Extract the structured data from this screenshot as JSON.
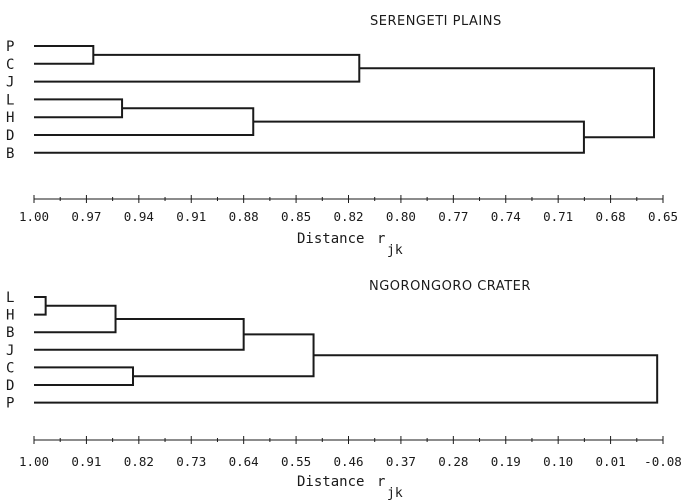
{
  "chart_data": [
    {
      "type": "dendrogram",
      "title": "SERENGETI  PLAINS",
      "leaves": [
        "P",
        "C",
        "J",
        "L",
        "H",
        "D",
        "B"
      ],
      "merges": [
        {
          "a": "P",
          "b": "C",
          "distance": 0.967
        },
        {
          "a": "L",
          "b": "H",
          "distance": 0.951
        },
        {
          "a": "LH",
          "b": "D",
          "distance": 0.878
        },
        {
          "a": "PC",
          "b": "J",
          "distance": 0.819
        },
        {
          "a": "LHD",
          "b": "B",
          "distance": 0.694
        },
        {
          "a": "PCJ",
          "b": "LHDB",
          "distance": 0.655
        }
      ],
      "xaxis": {
        "ticks": [
          "1.00",
          "0.97",
          "0.94",
          "0.91",
          "0.88",
          "0.85",
          "0.82",
          "0.80",
          "0.77",
          "0.74",
          "0.71",
          "0.68",
          "0.65"
        ],
        "range": [
          1.0,
          0.65
        ],
        "label": "Distance",
        "symbol": "r",
        "subscript": "jk"
      }
    },
    {
      "type": "dendrogram",
      "title": "NGORONGORO  CRATER",
      "leaves": [
        "L",
        "H",
        "B",
        "J",
        "C",
        "D",
        "P"
      ],
      "merges": [
        {
          "a": "L",
          "b": "H",
          "distance": 0.98
        },
        {
          "a": "LH",
          "b": "B",
          "distance": 0.86
        },
        {
          "a": "C",
          "b": "D",
          "distance": 0.83
        },
        {
          "a": "LHB",
          "b": "J",
          "distance": 0.64
        },
        {
          "a": "LHBJ",
          "b": "CD",
          "distance": 0.52
        },
        {
          "a": "LHBJCD",
          "b": "P",
          "distance": -0.07
        }
      ],
      "xaxis": {
        "ticks": [
          "1.00",
          "0.91",
          "0.82",
          "0.73",
          "0.64",
          "0.55",
          "0.46",
          "0.37",
          "0.28",
          "0.19",
          "0.10",
          "0.01",
          "-0.08"
        ],
        "range": [
          1.0,
          -0.08
        ],
        "label": "Distance",
        "symbol": "r",
        "subscript": "jk"
      }
    }
  ]
}
